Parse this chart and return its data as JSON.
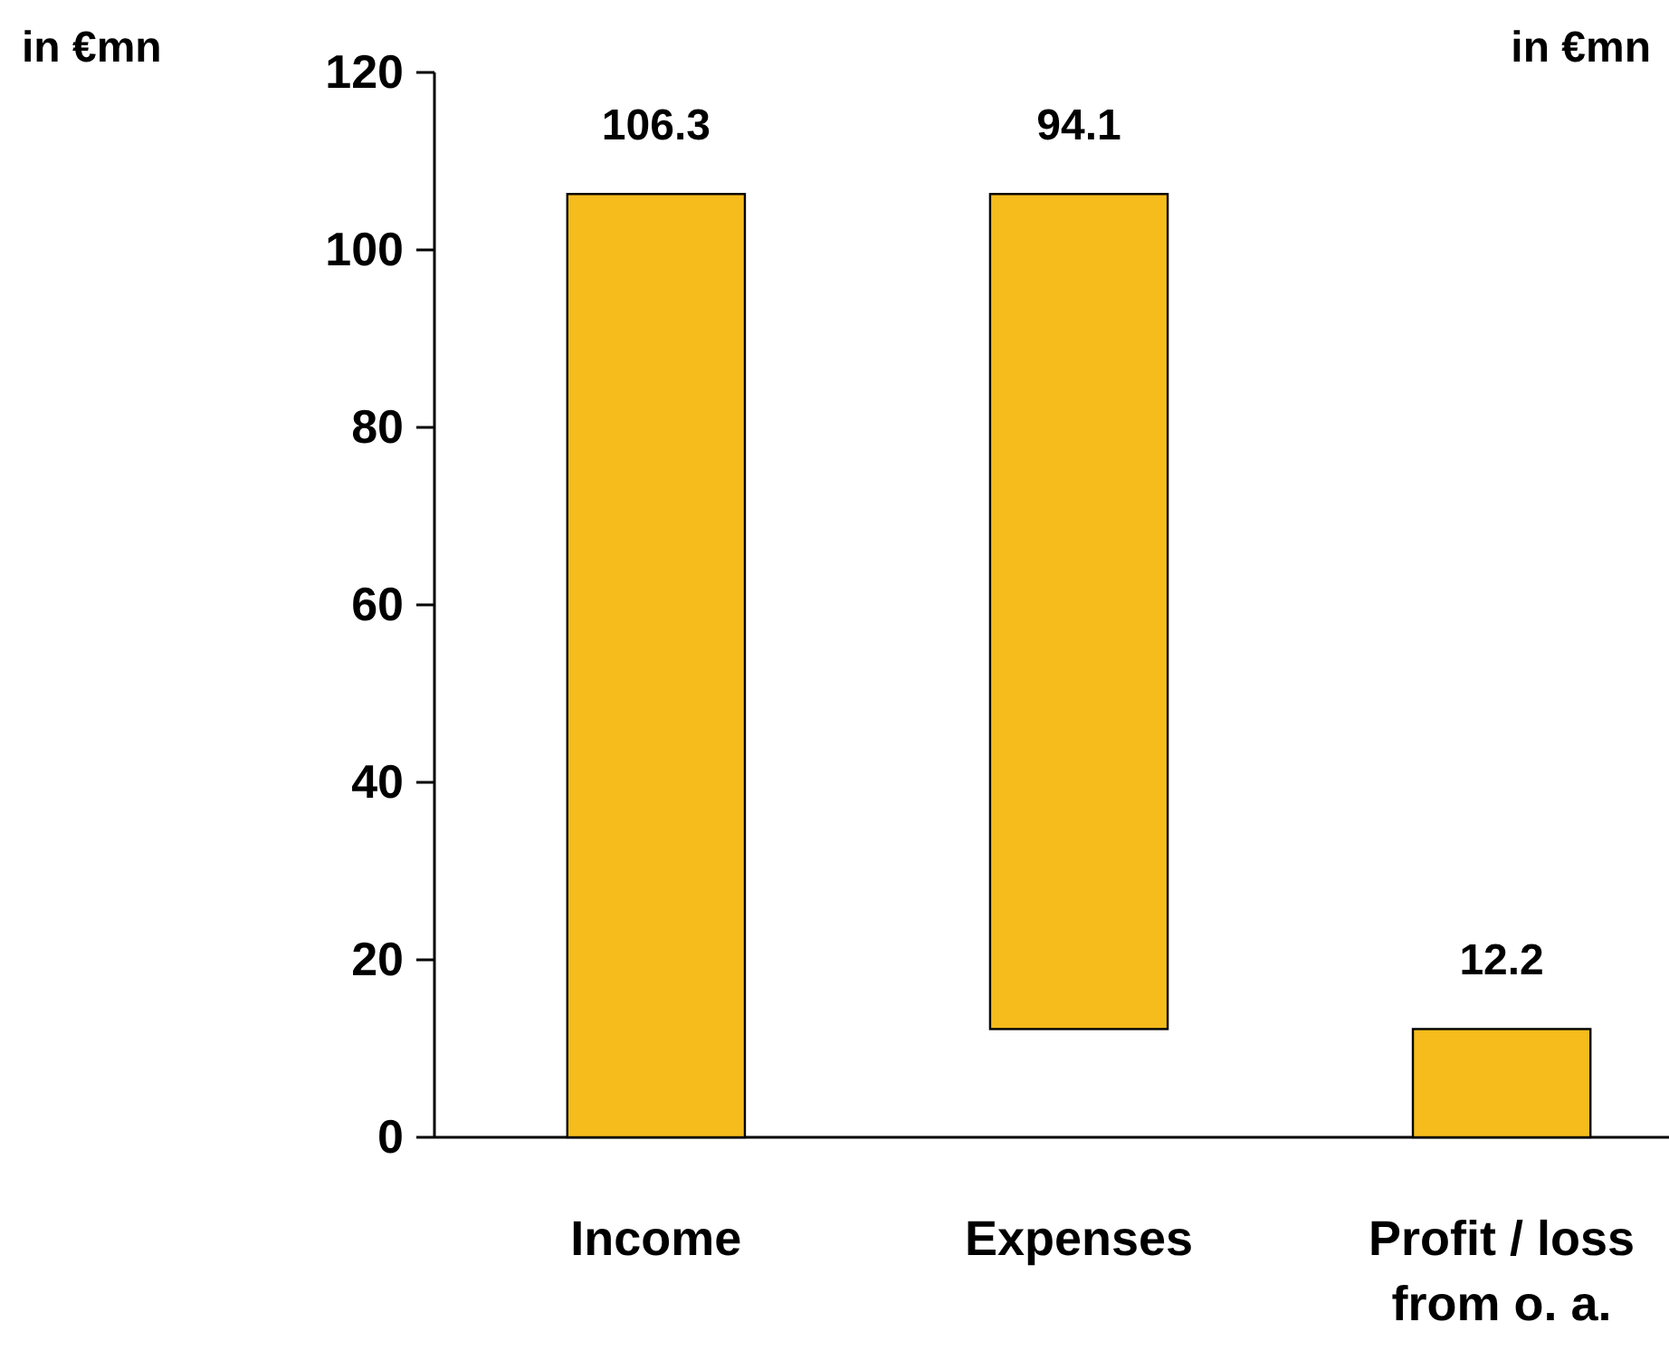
{
  "chart_data": {
    "type": "bar",
    "ylabel": "in €mn",
    "annotations": [
      "in €mn"
    ],
    "categories": [
      "Income",
      "Expenses",
      "Profit / loss from o. a."
    ],
    "values": [
      106.3,
      94.1,
      12.2
    ],
    "base": [
      0,
      12.2,
      0
    ],
    "color": "#f5bc1c",
    "ylim": [
      0,
      120
    ],
    "yticks": [
      0,
      20,
      40,
      60,
      80,
      100,
      120
    ],
    "data_labels": true
  }
}
